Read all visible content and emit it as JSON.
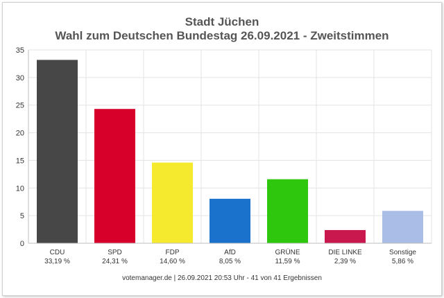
{
  "chart_data": {
    "type": "bar",
    "title": "Stadt Jüchen",
    "subtitle": "Wahl zum Deutschen Bundestag 26.09.2021  - Zweitstimmen",
    "categories": [
      "CDU",
      "SPD",
      "FDP",
      "AfD",
      "GRÜNE",
      "DIE LINKE",
      "Sonstige"
    ],
    "values": [
      33.19,
      24.31,
      14.6,
      8.05,
      11.59,
      2.39,
      5.86
    ],
    "value_labels": [
      "33,19 %",
      "24,31 %",
      "14,60 %",
      "8,05 %",
      "11,59 %",
      "2,39 %",
      "5,86 %"
    ],
    "colors": [
      "#474747",
      "#d7002a",
      "#f6ea2f",
      "#1b72cd",
      "#2fc60e",
      "#c8184e",
      "#aabde6"
    ],
    "ylim": [
      0,
      35
    ],
    "yticks": [
      "0",
      "5",
      "10",
      "15",
      "20",
      "25",
      "30",
      "35"
    ],
    "grid": true,
    "legend": "none"
  },
  "footer": "votemanager.de | 26.09.2021 20:53 Uhr - 41 von 41 Ergebnissen"
}
